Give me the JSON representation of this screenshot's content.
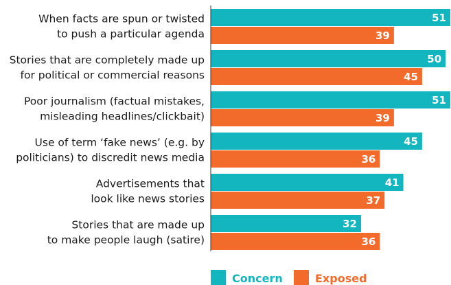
{
  "chart_data": {
    "type": "bar",
    "orientation": "horizontal",
    "categories": [
      [
        "When facts are spun or twisted",
        "to push a particular agenda"
      ],
      [
        "Stories that are completely made up",
        "for political or commercial reasons"
      ],
      [
        "Poor journalism (factual mistakes,",
        "misleading headlines/clickbait)"
      ],
      [
        "Use of term ‘fake news’ (e.g. by",
        "politicians) to discredit news media"
      ],
      [
        "Advertisements that",
        "look like news stories"
      ],
      [
        "Stories that are made up",
        "to make people laugh (satire)"
      ]
    ],
    "series": [
      {
        "name": "Concern",
        "color": "#13b5bf",
        "values": [
          51,
          50,
          51,
          45,
          41,
          32
        ]
      },
      {
        "name": "Exposed",
        "color": "#f26b2b",
        "values": [
          39,
          45,
          39,
          36,
          37,
          36
        ]
      }
    ],
    "xlim": [
      0,
      51
    ],
    "grid": false,
    "legend_position": "bottom-center"
  }
}
